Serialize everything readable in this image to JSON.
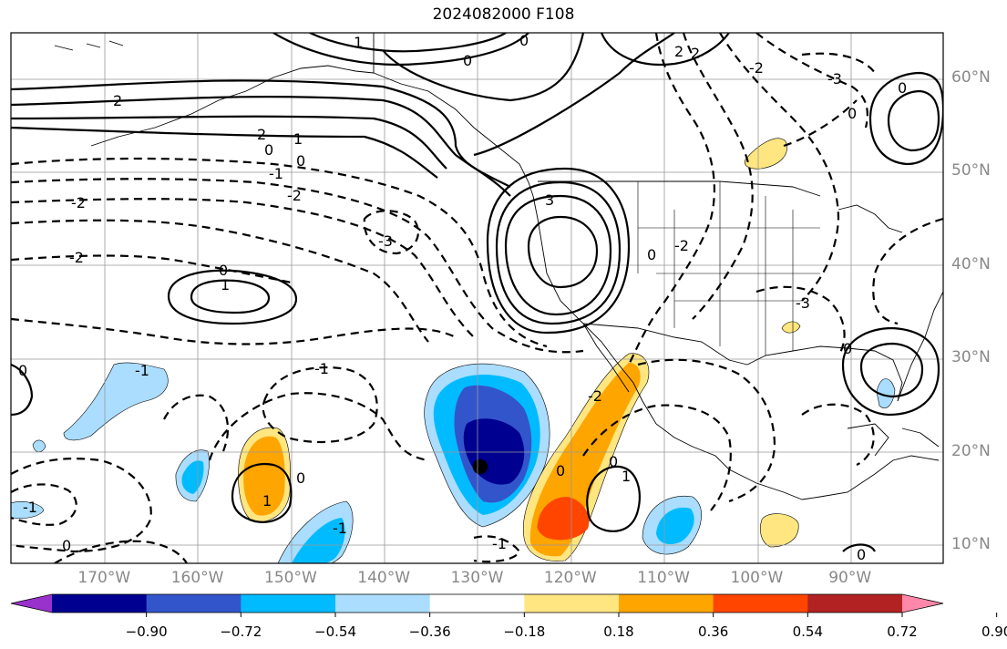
{
  "title": "2024082000 F108",
  "lat_labels": [
    {
      "text": "60°N",
      "lat": 60
    },
    {
      "text": "50°N",
      "lat": 50
    },
    {
      "text": "40°N",
      "lat": 40
    },
    {
      "text": "30°N",
      "lat": 30
    },
    {
      "text": "20°N",
      "lat": 20
    },
    {
      "text": "10°N",
      "lat": 10
    }
  ],
  "lon_labels": [
    {
      "text": "170°W",
      "lon": -170
    },
    {
      "text": "160°W",
      "lon": -160
    },
    {
      "text": "150°W",
      "lon": -150
    },
    {
      "text": "140°W",
      "lon": -140
    },
    {
      "text": "130°W",
      "lon": -130
    },
    {
      "text": "120°W",
      "lon": -120
    },
    {
      "text": "110°W",
      "lon": -110
    },
    {
      "text": "100°W",
      "lon": -100
    },
    {
      "text": "90°W",
      "lon": -90
    }
  ],
  "colorbar": {
    "colors": [
      "#9932cc",
      "#000090",
      "#3355cc",
      "#00bbff",
      "#aaddff",
      "#ffffff",
      "#ffe680",
      "#ffa500",
      "#ff4500",
      "#b22222",
      "#ff88aa"
    ],
    "ticks": [
      "−0.90",
      "−0.72",
      "−0.54",
      "−0.36",
      "−0.18",
      "0.18",
      "0.36",
      "0.54",
      "0.72",
      "0.90"
    ]
  },
  "contour_labels": [
    "-2",
    "-1",
    "0",
    "1",
    "2",
    "3",
    "-3"
  ]
}
